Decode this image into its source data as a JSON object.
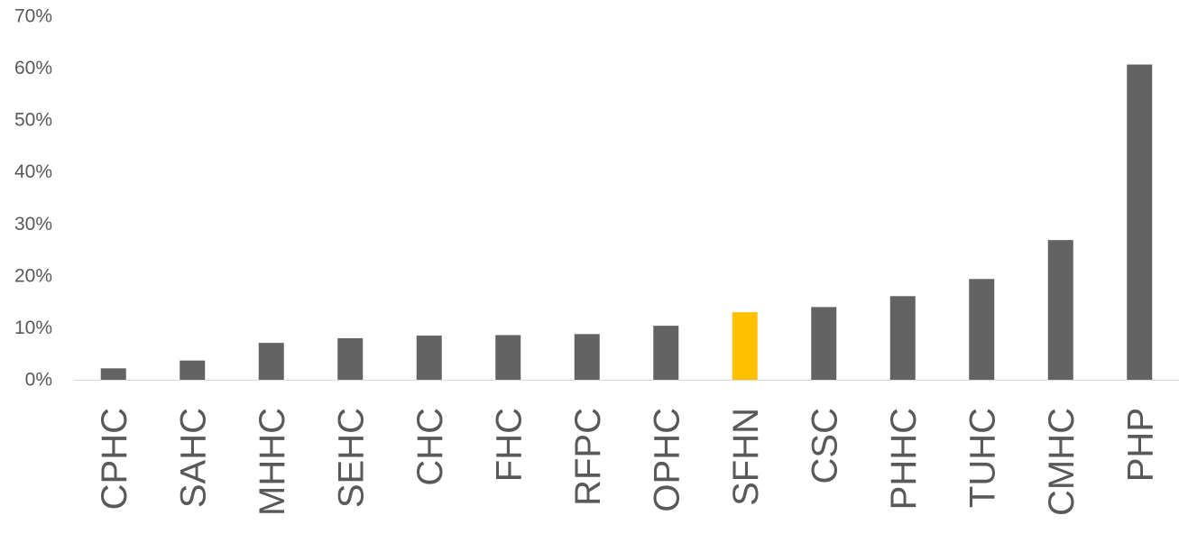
{
  "chart_data": {
    "type": "bar",
    "title": "",
    "xlabel": "",
    "ylabel": "",
    "ylim": [
      0,
      70
    ],
    "y_ticks": [
      "0%",
      "10%",
      "20%",
      "30%",
      "40%",
      "50%",
      "60%",
      "70%"
    ],
    "grid": false,
    "legend": "none",
    "categories": [
      "CPHC",
      "SAHC",
      "MHHC",
      "SEHC",
      "CHC",
      "FHC",
      "RFPC",
      "OPHC",
      "SFHN",
      "CSC",
      "PHHC",
      "TUHC",
      "CMHC",
      "PHP"
    ],
    "values": [
      2.2,
      3.7,
      7.1,
      8.0,
      8.5,
      8.6,
      8.8,
      10.4,
      13.0,
      14.0,
      16.1,
      19.4,
      26.9,
      60.7
    ],
    "colors": {
      "default": "#636363",
      "highlight": "#FFC000",
      "highlight_category": "SFHN",
      "axis": "#D9D9D9",
      "text": "#595959"
    }
  }
}
